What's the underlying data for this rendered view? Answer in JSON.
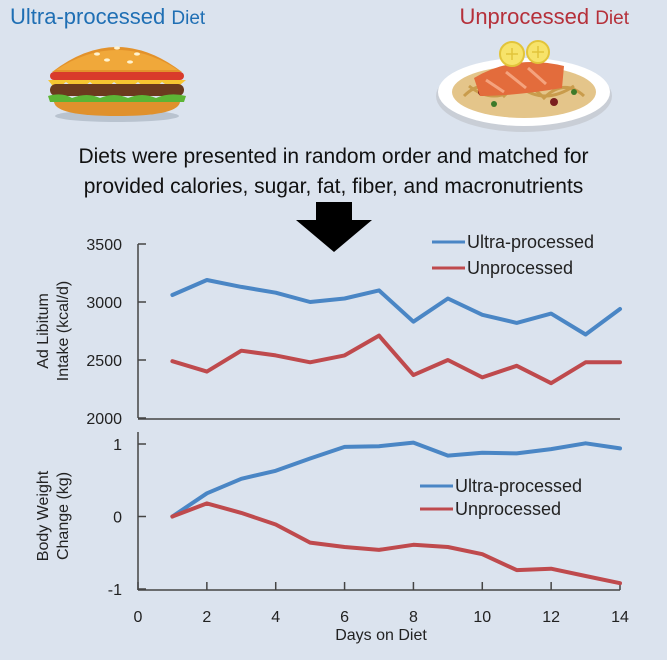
{
  "header": {
    "left_title_main": "Ultra-processed",
    "left_title_sub": "Diet",
    "right_title_main": "Unprocessed",
    "right_title_sub": "Diet",
    "left_color": "#1f6fb4",
    "right_color": "#b5303a",
    "description_line1": "Diets were presented in random order and matched for",
    "description_line2": "provided calories, sugar, fat, fiber, and macronutrients"
  },
  "icons": [
    "burger-icon",
    "salmon-pasta-plate-icon",
    "down-arrow-icon"
  ],
  "chart_data": [
    {
      "type": "line",
      "ylabel_line1": "Ad Libitum",
      "ylabel_line2": "Intake (kcal/d)",
      "xlabel": "",
      "ylim": [
        2000,
        3500
      ],
      "yticks": [
        2000,
        2500,
        3000,
        3500
      ],
      "xlim": [
        0,
        14
      ],
      "grid": false,
      "legend_placement": "top-right",
      "x": [
        1,
        2,
        3,
        4,
        5,
        6,
        7,
        8,
        9,
        10,
        11,
        12,
        13,
        14
      ],
      "series": [
        {
          "name": "Ultra-processed",
          "color": "#4a86c5",
          "values": [
            3060,
            3190,
            3130,
            3080,
            3000,
            3030,
            3100,
            2830,
            3030,
            2890,
            2820,
            2900,
            2720,
            2940
          ]
        },
        {
          "name": "Unprocessed",
          "color": "#bf4a4d",
          "values": [
            2490,
            2400,
            2580,
            2540,
            2480,
            2540,
            2710,
            2370,
            2500,
            2350,
            2450,
            2300,
            2480,
            2480
          ]
        }
      ]
    },
    {
      "type": "line",
      "ylabel_line1": "Body Weight",
      "ylabel_line2": "Change (kg)",
      "xlabel": "Days on Diet",
      "ylim": [
        -1,
        1
      ],
      "yticks": [
        -1,
        0,
        1
      ],
      "xlim": [
        0,
        14
      ],
      "xticks": [
        0,
        2,
        4,
        6,
        8,
        10,
        12,
        14
      ],
      "grid": false,
      "legend_placement": "right",
      "x": [
        1,
        2,
        3,
        4,
        5,
        6,
        7,
        8,
        9,
        10,
        11,
        12,
        13,
        14
      ],
      "series": [
        {
          "name": "Ultra-processed",
          "color": "#4a86c5",
          "values": [
            0,
            0.32,
            0.52,
            0.63,
            0.8,
            0.96,
            0.97,
            1.02,
            0.84,
            0.88,
            0.87,
            0.93,
            1.01,
            0.94
          ]
        },
        {
          "name": "Unprocessed",
          "color": "#bf4a4d",
          "values": [
            0,
            0.18,
            0.05,
            -0.11,
            -0.36,
            -0.42,
            -0.46,
            -0.39,
            -0.42,
            -0.52,
            -0.74,
            -0.72,
            -0.82,
            -0.92
          ]
        }
      ]
    }
  ]
}
